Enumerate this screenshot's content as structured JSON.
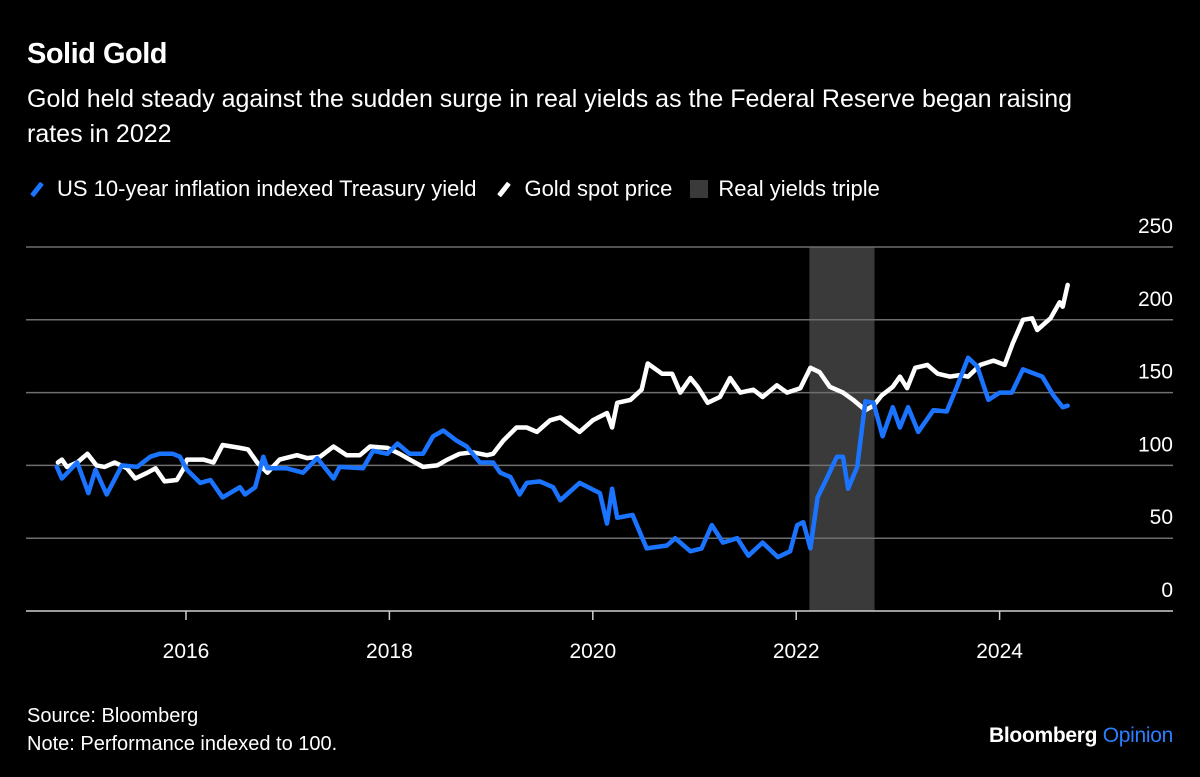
{
  "title": "Solid Gold",
  "subtitle": "Gold held steady against the sudden surge in real yields as the Federal Reserve began raising rates in 2022",
  "footer": {
    "source": "Source: Bloomberg",
    "note": "Note: Performance indexed to 100."
  },
  "logo": {
    "brand": "Bloomberg",
    "section": "Opinion"
  },
  "colors": {
    "background": "#000000",
    "tips": "#1a74ff",
    "gold": "#ffffff",
    "shade": "#3a3a3a",
    "grid": "#6e6e6e"
  },
  "chart_data": {
    "type": "line",
    "title": "Solid Gold",
    "xlabel": "",
    "ylabel": "",
    "xlim": [
      2014.5,
      2025.5
    ],
    "ylim": [
      0,
      250
    ],
    "grid": true,
    "legend_position": "top-left",
    "x_ticks": [
      "2016",
      "2018",
      "2020",
      "2022",
      "2024"
    ],
    "y_ticks": [
      "0",
      "50",
      "100",
      "150",
      "200",
      "250"
    ],
    "y_axis_side": "right",
    "legend": [
      "US 10-year inflation indexed Treasury yield",
      "Gold spot price",
      "Real yields triple"
    ],
    "shaded_region": {
      "name": "Real yields triple",
      "x": [
        2022.13,
        2022.77
      ]
    },
    "series": [
      {
        "name": "US 10-year inflation indexed Treasury yield",
        "color": "#1a74ff",
        "x": [
          2014.73,
          2014.78,
          2014.93,
          2015.04,
          2015.11,
          2015.22,
          2015.37,
          2015.52,
          2015.65,
          2015.74,
          2015.87,
          2015.94,
          2016.01,
          2016.14,
          2016.24,
          2016.36,
          2016.53,
          2016.58,
          2016.68,
          2016.76,
          2016.8,
          2016.99,
          2017.15,
          2017.29,
          2017.45,
          2017.51,
          2017.74,
          2017.84,
          2017.98,
          2018.08,
          2018.2,
          2018.33,
          2018.43,
          2018.53,
          2018.66,
          2018.76,
          2018.89,
          2019.02,
          2019.09,
          2019.19,
          2019.28,
          2019.35,
          2019.48,
          2019.61,
          2019.68,
          2019.87,
          2020.07,
          2020.14,
          2020.19,
          2020.24,
          2020.39,
          2020.53,
          2020.73,
          2020.81,
          2020.96,
          2021.07,
          2021.17,
          2021.28,
          2021.42,
          2021.53,
          2021.67,
          2021.82,
          2021.94,
          2022.01,
          2022.07,
          2022.14,
          2022.21,
          2022.3,
          2022.4,
          2022.46,
          2022.51,
          2022.6,
          2022.68,
          2022.76,
          2022.85,
          2022.95,
          2023.02,
          2023.1,
          2023.2,
          2023.35,
          2023.48,
          2023.58,
          2023.69,
          2023.78,
          2023.89,
          2024.0,
          2024.12,
          2024.23,
          2024.42,
          2024.53,
          2024.62,
          2024.67
        ],
        "y": [
          99,
          91,
          102,
          81,
          97,
          80,
          100,
          99,
          106,
          108,
          108,
          106,
          97,
          88,
          90,
          78,
          85,
          80,
          85,
          106,
          98,
          98,
          95,
          105,
          91,
          99,
          98,
          110,
          108,
          115,
          108,
          108,
          120,
          124,
          117,
          113,
          102,
          102,
          95,
          92,
          80,
          88,
          89,
          85,
          76,
          88,
          81,
          60,
          84,
          64,
          66,
          43,
          45,
          50,
          41,
          43,
          59,
          47,
          50,
          38,
          47,
          37,
          41,
          59,
          61,
          43,
          78,
          91,
          106,
          106,
          84,
          99,
          144,
          143,
          120,
          140,
          126,
          140,
          123,
          138,
          137,
          154,
          174,
          168,
          145,
          150,
          150,
          166,
          161,
          148,
          140,
          141
        ]
      },
      {
        "name": "Gold spot price",
        "color": "#ffffff",
        "x": [
          2014.74,
          2014.78,
          2014.83,
          2014.93,
          2015.03,
          2015.12,
          2015.2,
          2015.3,
          2015.42,
          2015.5,
          2015.62,
          2015.7,
          2015.79,
          2015.91,
          2015.97,
          2016.01,
          2016.17,
          2016.27,
          2016.36,
          2016.53,
          2016.61,
          2016.7,
          2016.8,
          2016.92,
          2017.09,
          2017.19,
          2017.32,
          2017.45,
          2017.58,
          2017.71,
          2017.81,
          2017.98,
          2018.1,
          2018.2,
          2018.33,
          2018.47,
          2018.57,
          2018.69,
          2018.82,
          2018.96,
          2019.02,
          2019.12,
          2019.25,
          2019.35,
          2019.45,
          2019.58,
          2019.68,
          2019.87,
          2020.0,
          2020.14,
          2020.19,
          2020.24,
          2020.37,
          2020.48,
          2020.54,
          2020.68,
          2020.78,
          2020.86,
          2020.96,
          2021.03,
          2021.13,
          2021.25,
          2021.35,
          2021.45,
          2021.58,
          2021.67,
          2021.81,
          2021.91,
          2022.04,
          2022.14,
          2022.23,
          2022.33,
          2022.46,
          2022.56,
          2022.68,
          2022.76,
          2022.84,
          2022.95,
          2023.02,
          2023.09,
          2023.17,
          2023.29,
          2023.39,
          2023.51,
          2023.61,
          2023.69,
          2023.81,
          2023.94,
          2024.05,
          2024.13,
          2024.23,
          2024.32,
          2024.37,
          2024.5,
          2024.59,
          2024.62,
          2024.67
        ],
        "y": [
          102,
          104,
          99,
          102,
          108,
          100,
          99,
          102,
          98,
          91,
          95,
          98,
          89,
          90,
          97,
          104,
          104,
          102,
          114,
          112,
          111,
          102,
          95,
          104,
          107,
          105,
          106,
          113,
          107,
          107,
          113,
          112,
          108,
          104,
          99,
          100,
          104,
          108,
          109,
          107,
          108,
          117,
          126,
          126,
          123,
          131,
          133,
          123,
          131,
          136,
          126,
          143,
          145,
          152,
          170,
          163,
          163,
          150,
          160,
          154,
          143,
          147,
          160,
          150,
          152,
          147,
          155,
          150,
          153,
          167,
          164,
          154,
          150,
          145,
          138,
          141,
          148,
          154,
          161,
          153,
          167,
          169,
          163,
          161,
          162,
          161,
          169,
          172,
          169,
          184,
          200,
          201,
          193,
          201,
          212,
          209,
          224
        ]
      }
    ]
  }
}
